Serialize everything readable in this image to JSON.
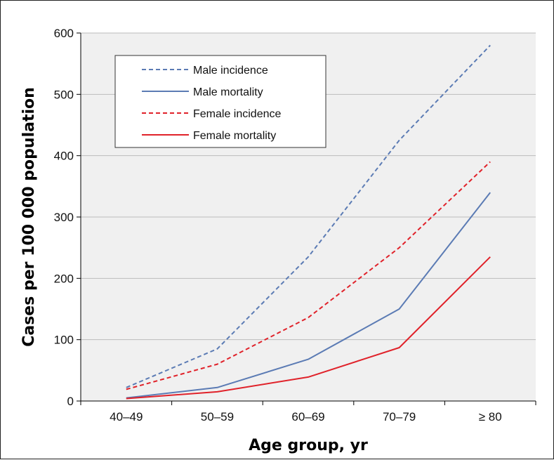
{
  "chart_data": {
    "type": "line",
    "title": "",
    "xlabel": "Age group, yr",
    "ylabel": "Cases per 100 000 population",
    "categories": [
      "40–49",
      "50–59",
      "60–69",
      "70–79",
      "≥ 80"
    ],
    "ylim": [
      0,
      600
    ],
    "yticks": [
      0,
      100,
      200,
      300,
      400,
      500,
      600
    ],
    "grid": true,
    "legend_position": "top-left",
    "series": [
      {
        "name": "Male incidence",
        "values": [
          22,
          85,
          235,
          425,
          580
        ],
        "color": "#5B7BB4",
        "dash": "dashed"
      },
      {
        "name": "Male mortality",
        "values": [
          5,
          22,
          68,
          150,
          340
        ],
        "color": "#5B7BB4",
        "dash": "solid"
      },
      {
        "name": "Female incidence",
        "values": [
          19,
          60,
          136,
          250,
          390
        ],
        "color": "#E0222A",
        "dash": "dashed"
      },
      {
        "name": "Female mortality",
        "values": [
          4,
          15,
          39,
          87,
          235
        ],
        "color": "#E0222A",
        "dash": "solid"
      }
    ],
    "colors": {
      "plot_background": "#F0F0F0",
      "grid": "#BBBBBB"
    }
  }
}
